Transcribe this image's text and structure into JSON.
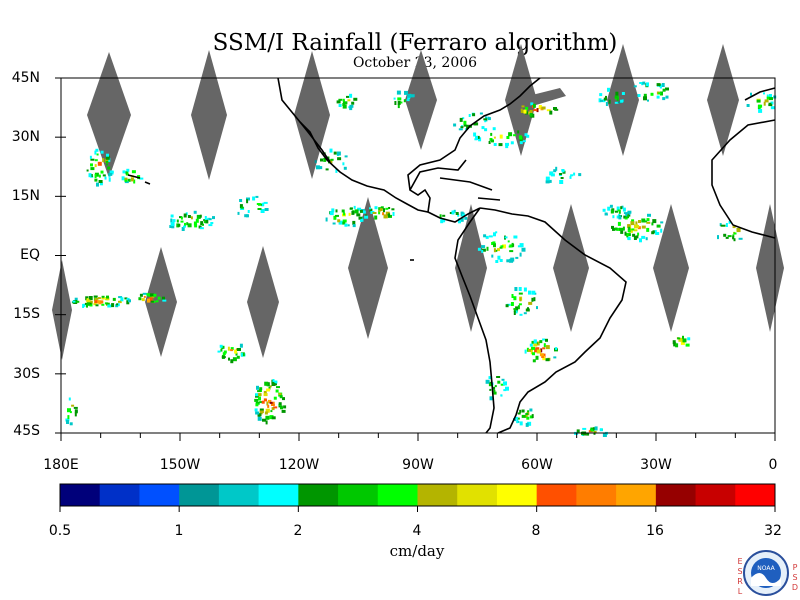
{
  "title": "SSM/I Rainfall (Ferraro algorithm)",
  "subtitle": "October 23, 2006",
  "map": {
    "lon_range": [
      -180,
      0
    ],
    "lat_range": [
      -45,
      45
    ],
    "y_ticks": [
      "45N",
      "30N",
      "15N",
      "EQ",
      "15S",
      "30S",
      "45S"
    ],
    "x_ticks": [
      "180E",
      "150W",
      "120W",
      "90W",
      "60W",
      "30W",
      "0"
    ],
    "missing_swath_color": "#666666"
  },
  "colorbar": {
    "colors": [
      "#00007a",
      "#0030c8",
      "#0050ff",
      "#009696",
      "#00c8c8",
      "#00ffff",
      "#009600",
      "#00c800",
      "#00ff00",
      "#b4b400",
      "#e1e100",
      "#ffff00",
      "#ff5000",
      "#ff7d00",
      "#ffa500",
      "#960000",
      "#c80000",
      "#ff0000"
    ],
    "tick_labels": [
      "0.5",
      "1",
      "2",
      "4",
      "8",
      "16",
      "32"
    ],
    "units": "cm/day"
  },
  "logo": {
    "left_letters": "ESRL",
    "right_letters": "PSD",
    "badge_text": "NOAA"
  }
}
